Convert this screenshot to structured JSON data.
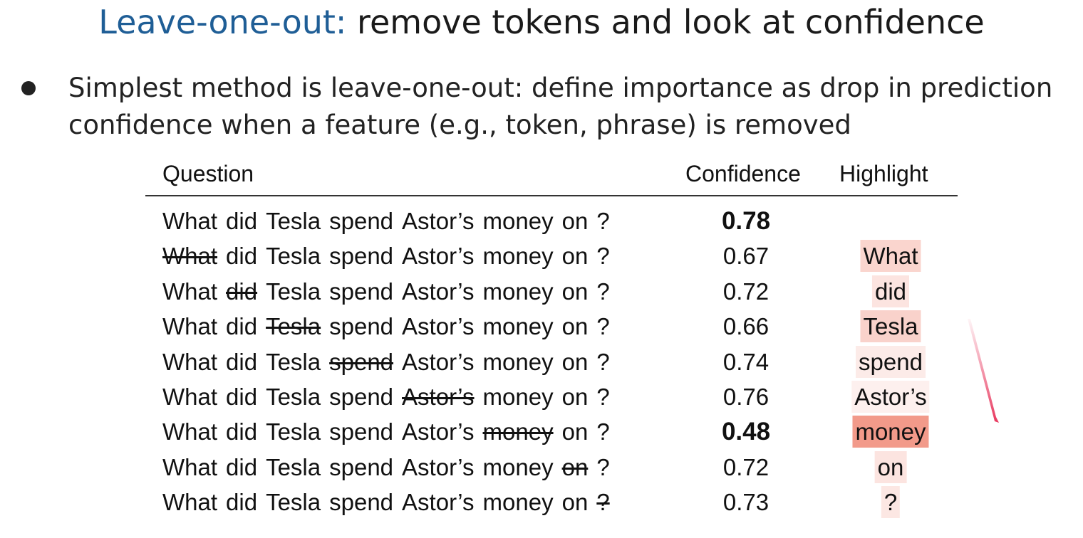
{
  "title": {
    "accent": "Leave-one-out:",
    "rest": " remove tokens and look at confidence"
  },
  "bullet": {
    "text": "Simplest method is leave-one-out: define importance as drop in prediction confidence when a feature (e.g., token, phrase) is removed"
  },
  "table": {
    "headers": {
      "question": "Question",
      "confidence": "Confidence",
      "highlight": "Highlight"
    },
    "rows": [
      {
        "tokens": [
          "What",
          "did",
          "Tesla",
          "spend",
          "Astor’s",
          "money",
          "on",
          "?"
        ],
        "removed": -1,
        "confidence": "0.78",
        "bold": true,
        "highlight": "",
        "highlight_strength": 0
      },
      {
        "tokens": [
          "What",
          "did",
          "Tesla",
          "spend",
          "Astor’s",
          "money",
          "on",
          "?"
        ],
        "removed": 0,
        "confidence": "0.67",
        "bold": false,
        "highlight": "What",
        "highlight_strength": 0.37
      },
      {
        "tokens": [
          "What",
          "did",
          "Tesla",
          "spend",
          "Astor’s",
          "money",
          "on",
          "?"
        ],
        "removed": 1,
        "confidence": "0.72",
        "bold": false,
        "highlight": "did",
        "highlight_strength": 0.2
      },
      {
        "tokens": [
          "What",
          "did",
          "Tesla",
          "spend",
          "Astor’s",
          "money",
          "on",
          "?"
        ],
        "removed": 2,
        "confidence": "0.66",
        "bold": false,
        "highlight": "Tesla",
        "highlight_strength": 0.4
      },
      {
        "tokens": [
          "What",
          "did",
          "Tesla",
          "spend",
          "Astor’s",
          "money",
          "on",
          "?"
        ],
        "removed": 3,
        "confidence": "0.74",
        "bold": false,
        "highlight": "spend",
        "highlight_strength": 0.13
      },
      {
        "tokens": [
          "What",
          "did",
          "Tesla",
          "spend",
          "Astor’s",
          "money",
          "on",
          "?"
        ],
        "removed": 4,
        "confidence": "0.76",
        "bold": false,
        "highlight": "Astor’s",
        "highlight_strength": 0.07
      },
      {
        "tokens": [
          "What",
          "did",
          "Tesla",
          "spend",
          "Astor’s",
          "money",
          "on",
          "?"
        ],
        "removed": 5,
        "confidence": "0.48",
        "bold": true,
        "highlight": "money",
        "highlight_strength": 1.0
      },
      {
        "tokens": [
          "What",
          "did",
          "Tesla",
          "spend",
          "Astor’s",
          "money",
          "on",
          "?"
        ],
        "removed": 6,
        "confidence": "0.72",
        "bold": false,
        "highlight": "on",
        "highlight_strength": 0.2
      },
      {
        "tokens": [
          "What",
          "did",
          "Tesla",
          "spend",
          "Astor’s",
          "money",
          "on",
          "?"
        ],
        "removed": 7,
        "confidence": "0.73",
        "bold": false,
        "highlight": "?",
        "highlight_strength": 0.17
      }
    ]
  },
  "colors": {
    "title_accent": "#1f5e96",
    "highlight_max": "#f29a8a",
    "pen_mark": "#e8395f"
  }
}
